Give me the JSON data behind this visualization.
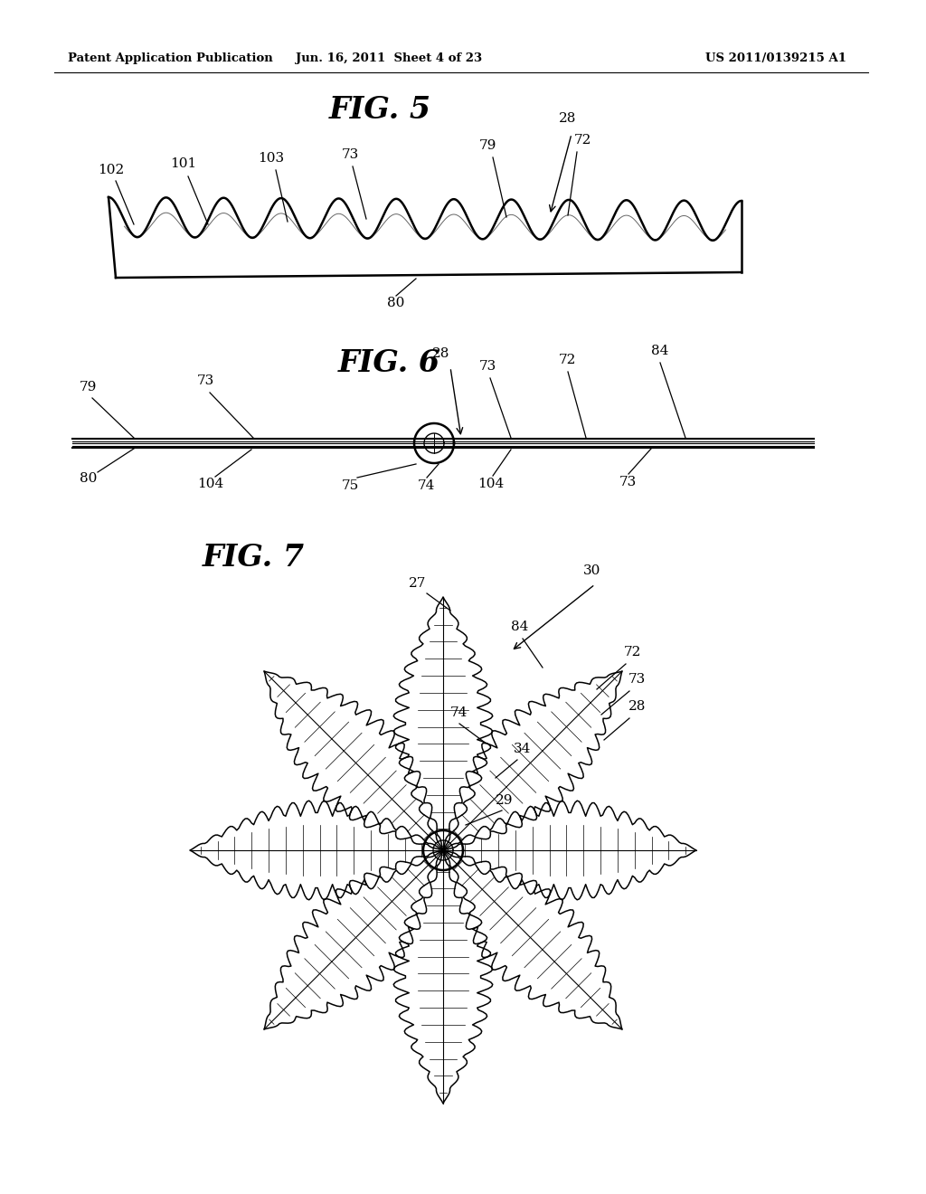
{
  "bg_color": "#ffffff",
  "header_left": "Patent Application Publication",
  "header_mid": "Jun. 16, 2011  Sheet 4 of 23",
  "header_right": "US 2011/0139215 A1",
  "fig5_title": "FIG. 5",
  "fig6_title": "FIG. 6",
  "fig7_title": "FIG. 7"
}
